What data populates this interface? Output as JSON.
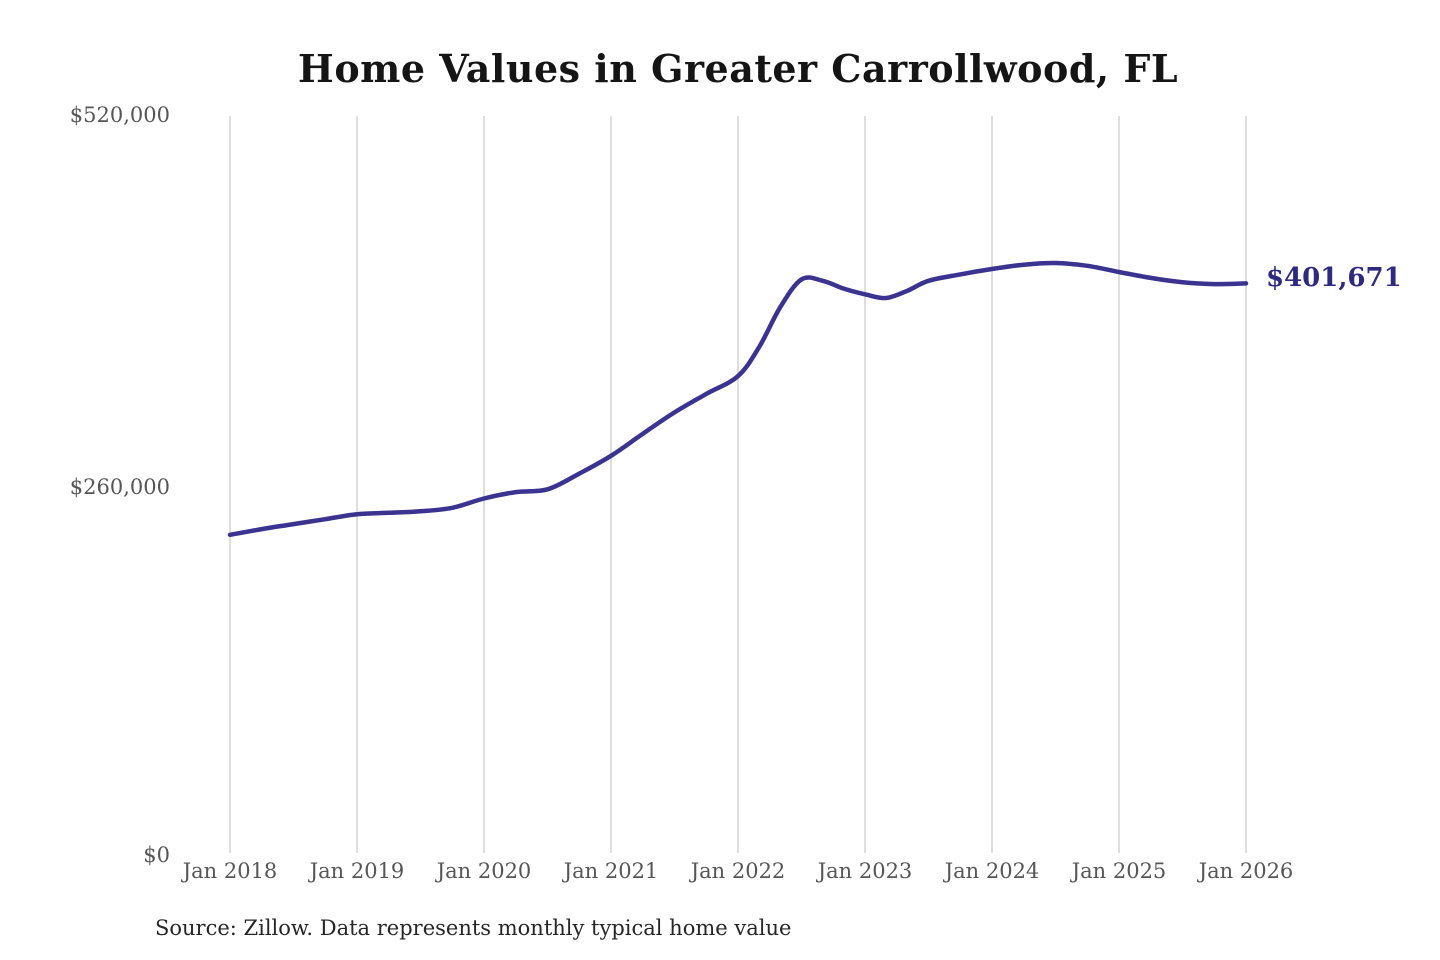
{
  "chart_data": {
    "type": "line",
    "title": "Home Values in Greater Carrollwood, FL",
    "xlabel": "",
    "ylabel": "",
    "ylim": [
      0,
      520000
    ],
    "grid": "vertical-only",
    "legend": "none",
    "line_color": "#3a3490",
    "gridline_color": "#cccccc",
    "end_label": "$401,671",
    "end_value": 401671,
    "y_tick_labels": [
      "$0",
      "$260,000",
      "$520,000"
    ],
    "y_tick_values": [
      0,
      260000,
      520000
    ],
    "x_tick_labels": [
      "Jan 2018",
      "Jan 2019",
      "Jan 2020",
      "Jan 2021",
      "Jan 2022",
      "Jan 2023",
      "Jan 2024",
      "Jan 2025",
      "Jan 2026"
    ],
    "series": [
      {
        "name": "Monthly typical home value",
        "points": [
          [
            "2018-01",
            225000
          ],
          [
            "2018-04",
            229000
          ],
          [
            "2018-07",
            232500
          ],
          [
            "2018-10",
            236000
          ],
          [
            "2019-01",
            239500
          ],
          [
            "2019-04",
            240500
          ],
          [
            "2019-07",
            241500
          ],
          [
            "2019-10",
            244000
          ],
          [
            "2020-01",
            250500
          ],
          [
            "2020-04",
            255000
          ],
          [
            "2020-07",
            257000
          ],
          [
            "2020-10",
            268000
          ],
          [
            "2021-01",
            280500
          ],
          [
            "2021-04",
            296000
          ],
          [
            "2021-07",
            311000
          ],
          [
            "2021-10",
            324000
          ],
          [
            "2022-01",
            336500
          ],
          [
            "2022-03",
            357000
          ],
          [
            "2022-05",
            385000
          ],
          [
            "2022-07",
            404500
          ],
          [
            "2022-09",
            403500
          ],
          [
            "2022-11",
            398000
          ],
          [
            "2023-01",
            394000
          ],
          [
            "2023-03",
            391400
          ],
          [
            "2023-05",
            396500
          ],
          [
            "2023-07",
            403500
          ],
          [
            "2023-10",
            408000
          ],
          [
            "2024-01",
            411800
          ],
          [
            "2024-04",
            414800
          ],
          [
            "2024-07",
            416000
          ],
          [
            "2024-10",
            414000
          ],
          [
            "2025-01",
            409700
          ],
          [
            "2025-04",
            405500
          ],
          [
            "2025-07",
            402500
          ],
          [
            "2025-10",
            401200
          ],
          [
            "2026-01",
            401671
          ]
        ]
      }
    ]
  },
  "footer": {
    "source_note": "Source: Zillow. Data represents monthly typical home value"
  }
}
